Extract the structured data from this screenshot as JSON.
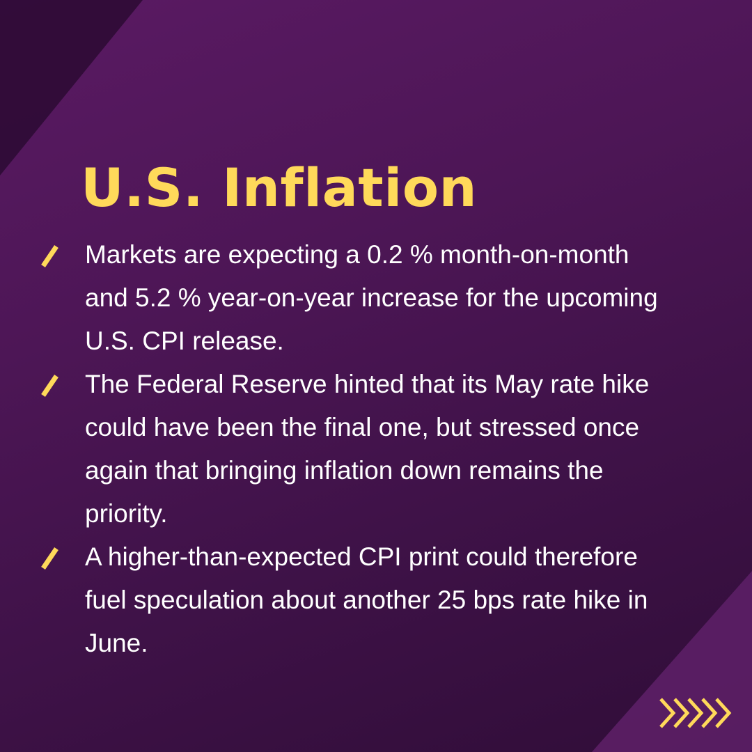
{
  "title": "U.S. Inflation",
  "bullets": [
    "Markets are expecting a 0.2 % month-on-month and 5.2 % year-on-year increase for the upcoming U.S. CPI release.",
    "The Federal Reserve hinted that its May rate hike could have been the final one, but stressed once again that bringing inflation down remains the priority.",
    "A higher-than-expected CPI print could therefore fuel speculation about another 25 bps rate hike in June."
  ],
  "icons": {
    "bullet": "slash-icon",
    "next": "chevrons-right-icon"
  },
  "colors": {
    "background": "#4d1656",
    "accent": "#ffd95a",
    "text": "#ffffff"
  }
}
